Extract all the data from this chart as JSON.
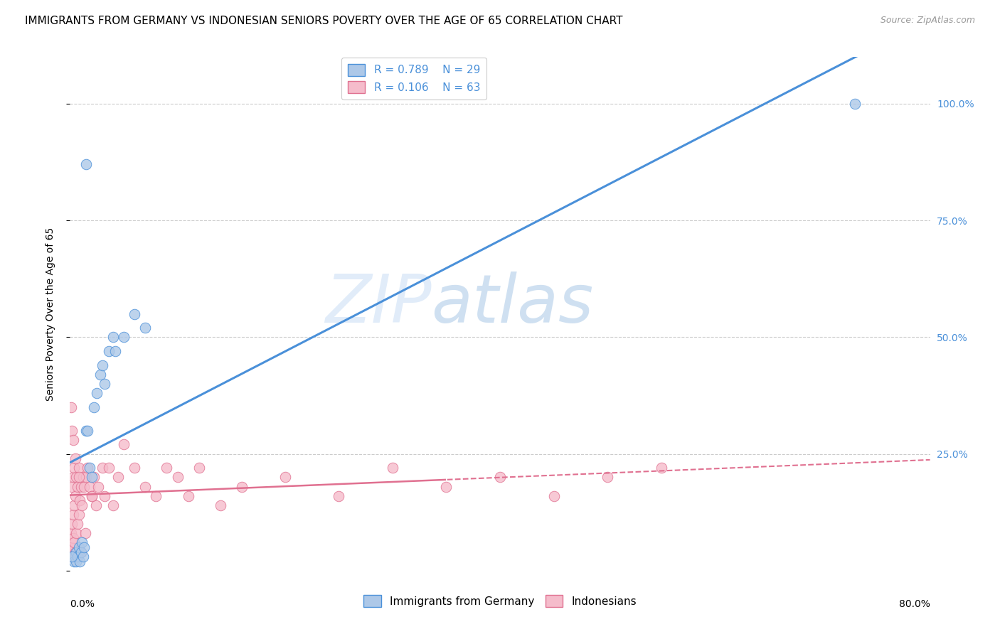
{
  "title": "IMMIGRANTS FROM GERMANY VS INDONESIAN SENIORS POVERTY OVER THE AGE OF 65 CORRELATION CHART",
  "source": "Source: ZipAtlas.com",
  "ylabel": "Seniors Poverty Over the Age of 65",
  "yticks_right": [
    "100.0%",
    "75.0%",
    "50.0%",
    "25.0%"
  ],
  "ytick_right_vals": [
    1.0,
    0.75,
    0.5,
    0.25
  ],
  "xlim": [
    0,
    0.8
  ],
  "ylim": [
    0,
    1.1
  ],
  "watermark_zip": "ZIP",
  "watermark_atlas": "atlas",
  "germany_R": "0.789",
  "germany_N": "29",
  "indonesia_R": "0.106",
  "indonesia_N": "63",
  "germany_color": "#adc8e8",
  "germany_line_color": "#4a90d9",
  "indonesia_color": "#f5bccb",
  "indonesia_line_color": "#e07090",
  "germany_x": [
    0.015,
    0.003,
    0.004,
    0.006,
    0.006,
    0.007,
    0.008,
    0.009,
    0.01,
    0.011,
    0.012,
    0.013,
    0.015,
    0.016,
    0.018,
    0.02,
    0.022,
    0.025,
    0.028,
    0.03,
    0.032,
    0.036,
    0.04,
    0.042,
    0.05,
    0.06,
    0.07,
    0.73,
    0.002
  ],
  "germany_y": [
    0.87,
    0.03,
    0.02,
    0.02,
    0.04,
    0.03,
    0.05,
    0.02,
    0.04,
    0.06,
    0.03,
    0.05,
    0.3,
    0.3,
    0.22,
    0.2,
    0.35,
    0.38,
    0.42,
    0.44,
    0.4,
    0.47,
    0.5,
    0.47,
    0.5,
    0.55,
    0.52,
    1.0,
    0.03
  ],
  "indonesia_x": [
    0.001,
    0.001,
    0.001,
    0.002,
    0.002,
    0.002,
    0.003,
    0.003,
    0.003,
    0.004,
    0.004,
    0.004,
    0.005,
    0.005,
    0.006,
    0.006,
    0.007,
    0.007,
    0.008,
    0.008,
    0.009,
    0.01,
    0.01,
    0.011,
    0.012,
    0.013,
    0.014,
    0.015,
    0.016,
    0.018,
    0.02,
    0.022,
    0.024,
    0.026,
    0.03,
    0.032,
    0.036,
    0.04,
    0.045,
    0.05,
    0.06,
    0.07,
    0.08,
    0.09,
    0.1,
    0.11,
    0.12,
    0.14,
    0.16,
    0.2,
    0.25,
    0.3,
    0.35,
    0.4,
    0.45,
    0.5,
    0.55,
    0.001,
    0.002,
    0.003,
    0.005,
    0.008,
    0.02
  ],
  "indonesia_y": [
    0.05,
    0.03,
    0.08,
    0.05,
    0.1,
    0.18,
    0.07,
    0.12,
    0.2,
    0.06,
    0.14,
    0.22,
    0.04,
    0.16,
    0.08,
    0.2,
    0.1,
    0.18,
    0.12,
    0.22,
    0.15,
    0.04,
    0.18,
    0.14,
    0.2,
    0.18,
    0.08,
    0.2,
    0.22,
    0.18,
    0.16,
    0.2,
    0.14,
    0.18,
    0.22,
    0.16,
    0.22,
    0.14,
    0.2,
    0.27,
    0.22,
    0.18,
    0.16,
    0.22,
    0.2,
    0.16,
    0.22,
    0.14,
    0.18,
    0.2,
    0.16,
    0.22,
    0.18,
    0.2,
    0.16,
    0.2,
    0.22,
    0.35,
    0.3,
    0.28,
    0.24,
    0.2,
    0.16
  ],
  "bg_color": "#ffffff",
  "grid_color": "#cccccc",
  "title_fontsize": 11,
  "axis_label_fontsize": 10,
  "tick_fontsize": 10,
  "legend_fontsize": 11
}
